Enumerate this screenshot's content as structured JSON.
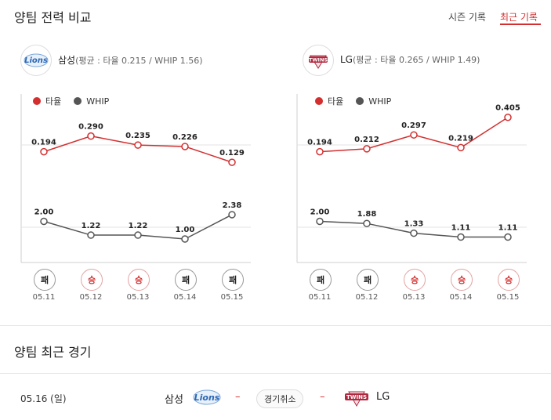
{
  "header": {
    "title": "양팀 전력 비교",
    "tabs": [
      {
        "label": "시즌 기록",
        "active": false
      },
      {
        "label": "최근 기록",
        "active": true
      }
    ]
  },
  "colors": {
    "batting": "#d32f2f",
    "whip": "#555555",
    "win": "#d32f2f",
    "lose": "#222222"
  },
  "legend": {
    "batting": "타율",
    "whip": "WHIP"
  },
  "teams": [
    {
      "logo_text": "Lions",
      "logo_icon": "lions-logo-icon",
      "name": "삼성",
      "summary": "(평균 : 타율 0.215 / WHIP 1.56)",
      "dates": [
        "05.11",
        "05.12",
        "05.13",
        "05.14",
        "05.15"
      ],
      "results": [
        "패",
        "승",
        "승",
        "패",
        "패"
      ],
      "batting": [
        0.194,
        0.29,
        0.235,
        0.226,
        0.129
      ],
      "batting_labels": [
        "0.194",
        "0.290",
        "0.235",
        "0.226",
        "0.129"
      ],
      "whip": [
        2.0,
        1.22,
        1.22,
        1.0,
        2.38
      ],
      "whip_labels": [
        "2.00",
        "1.22",
        "1.22",
        "1.00",
        "2.38"
      ]
    },
    {
      "logo_text": "TWINS",
      "logo_icon": "twins-logo-icon",
      "name": "LG",
      "summary": "(평균 : 타율 0.265 / WHIP 1.49)",
      "dates": [
        "05.11",
        "05.12",
        "05.13",
        "05.14",
        "05.15"
      ],
      "results": [
        "패",
        "패",
        "승",
        "승",
        "승"
      ],
      "batting": [
        0.194,
        0.212,
        0.297,
        0.219,
        0.405
      ],
      "batting_labels": [
        "0.194",
        "0.212",
        "0.297",
        "0.219",
        "0.405"
      ],
      "whip": [
        2.0,
        1.88,
        1.33,
        1.11,
        1.11
      ],
      "whip_labels": [
        "2.00",
        "1.88",
        "1.33",
        "1.11",
        "1.11"
      ]
    }
  ],
  "chart_data": [
    {
      "type": "line",
      "categories": [
        "05.11",
        "05.12",
        "05.13",
        "05.14",
        "05.15"
      ],
      "series": [
        {
          "name": "타율",
          "values": [
            0.194,
            0.29,
            0.235,
            0.226,
            0.129
          ]
        },
        {
          "name": "WHIP",
          "values": [
            2.0,
            1.22,
            1.22,
            1.0,
            2.38
          ]
        }
      ],
      "legend": "top-left"
    },
    {
      "type": "line",
      "categories": [
        "05.11",
        "05.12",
        "05.13",
        "05.14",
        "05.15"
      ],
      "series": [
        {
          "name": "타율",
          "values": [
            0.194,
            0.212,
            0.297,
            0.219,
            0.405
          ]
        },
        {
          "name": "WHIP",
          "values": [
            2.0,
            1.88,
            1.33,
            1.11,
            1.11
          ]
        }
      ],
      "legend": "top-left"
    }
  ],
  "recent": {
    "title": "양팀 최근 경기",
    "date": "05.16 (일)",
    "home": "삼성",
    "away": "LG",
    "separator": "–",
    "status": "경기취소"
  }
}
